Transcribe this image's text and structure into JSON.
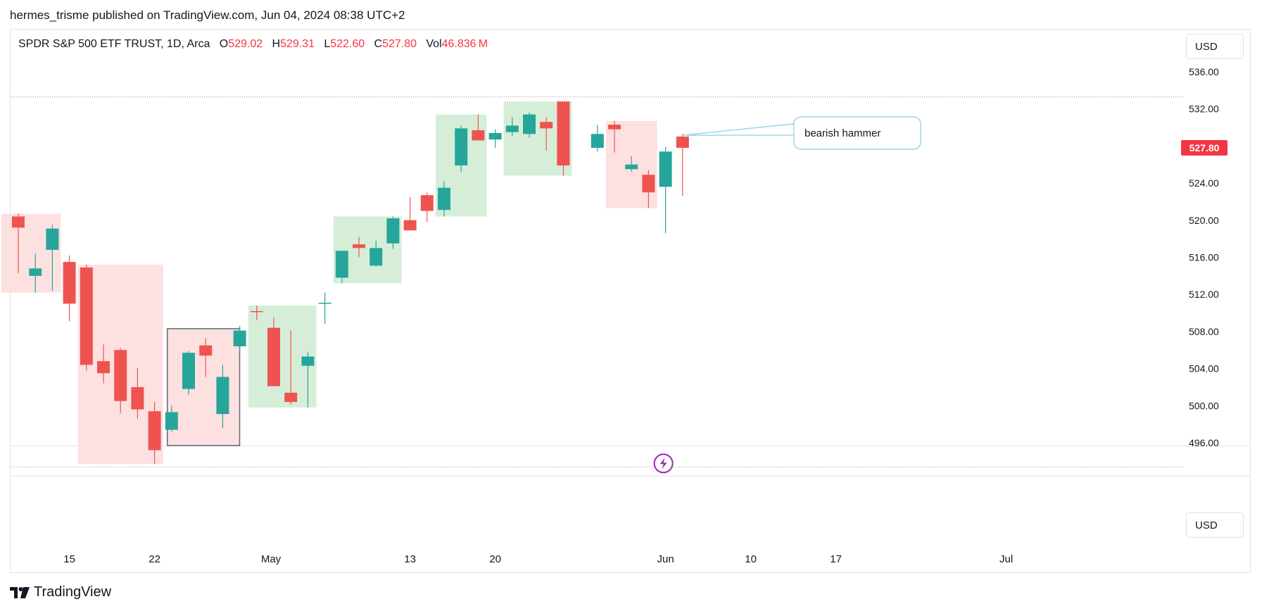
{
  "header": {
    "text": "hermes_trisme published on TradingView.com, Jun 04, 2024 08:38 UTC+2"
  },
  "symbol": {
    "name": "SPDR S&P 500 ETF TRUST, 1D, Arca",
    "o_label": "O",
    "o_value": "529.02",
    "h_label": "H",
    "h_value": "529.31",
    "l_label": "L",
    "l_value": "522.60",
    "c_label": "C",
    "c_value": "527.80",
    "vol_label": "Vol",
    "vol_value": "46.836",
    "vol_unit": "M"
  },
  "currency_top": "USD",
  "currency_bottom": "USD",
  "footer": {
    "brand": "TradingView"
  },
  "colors": {
    "up": "#26a69a",
    "down": "#ef5350",
    "up_zone": "#d6eed8",
    "down_zone": "#fde0e0",
    "price_label": "#f23645"
  },
  "chart_data": {
    "type": "candlestick",
    "title": "",
    "ylim": [
      493.5,
      537.5
    ],
    "y_ticks": [
      "536.00",
      "532.00",
      "528.00",
      "524.00",
      "520.00",
      "516.00",
      "512.00",
      "508.00",
      "504.00",
      "500.00",
      "496.00"
    ],
    "x_ticks": [
      "15",
      "22",
      "May",
      "13",
      "20",
      "Jun",
      "10",
      "17",
      "Jul"
    ],
    "last_price_label": "527.80",
    "candles": [
      {
        "date": "2024-04-10",
        "o": 520.4,
        "h": 520.7,
        "l": 514.3,
        "c": 519.2
      },
      {
        "date": "2024-04-11",
        "o": 514.0,
        "h": 516.4,
        "l": 512.2,
        "c": 514.8
      },
      {
        "date": "2024-04-12",
        "o": 516.8,
        "h": 519.5,
        "l": 512.4,
        "c": 519.1
      },
      {
        "date": "2024-04-15",
        "o": 515.5,
        "h": 516.2,
        "l": 509.1,
        "c": 511.0
      },
      {
        "date": "2024-04-16",
        "o": 514.9,
        "h": 515.2,
        "l": 503.8,
        "c": 504.4
      },
      {
        "date": "2024-04-17",
        "o": 504.8,
        "h": 506.6,
        "l": 502.4,
        "c": 503.5
      },
      {
        "date": "2024-04-18",
        "o": 506.0,
        "h": 506.2,
        "l": 499.2,
        "c": 500.5
      },
      {
        "date": "2024-04-19",
        "o": 502.0,
        "h": 504.1,
        "l": 498.6,
        "c": 499.6
      },
      {
        "date": "2024-04-22",
        "o": 499.4,
        "h": 500.4,
        "l": 493.7,
        "c": 495.2
      },
      {
        "date": "2024-04-23",
        "o": 497.4,
        "h": 500.0,
        "l": 497.2,
        "c": 499.3
      },
      {
        "date": "2024-04-24",
        "o": 501.8,
        "h": 505.9,
        "l": 501.2,
        "c": 505.7
      },
      {
        "date": "2024-04-25",
        "o": 506.5,
        "h": 507.3,
        "l": 503.1,
        "c": 505.4
      },
      {
        "date": "2024-04-26",
        "o": 499.1,
        "h": 504.4,
        "l": 497.6,
        "c": 503.1
      },
      {
        "date": "2024-04-29",
        "o": 506.4,
        "h": 508.6,
        "l": 505.8,
        "c": 508.1
      },
      {
        "date": "2024-04-30",
        "o": 510.2,
        "h": 510.8,
        "l": 509.2,
        "c": 510.1
      },
      {
        "date": "2024-05-01",
        "o": 508.4,
        "h": 509.5,
        "l": 502.2,
        "c": 502.1
      },
      {
        "date": "2024-05-02",
        "o": 501.4,
        "h": 508.1,
        "l": 500.1,
        "c": 500.4
      },
      {
        "date": "2024-05-03",
        "o": 504.3,
        "h": 505.8,
        "l": 499.8,
        "c": 505.3
      },
      {
        "date": "2024-05-06",
        "o": 511.0,
        "h": 512.2,
        "l": 508.8,
        "c": 511.1
      },
      {
        "date": "2024-05-07",
        "o": 513.8,
        "h": 516.6,
        "l": 513.2,
        "c": 516.7
      },
      {
        "date": "2024-05-08",
        "o": 517.4,
        "h": 518.2,
        "l": 516.0,
        "c": 517.0
      },
      {
        "date": "2024-05-09",
        "o": 515.1,
        "h": 517.8,
        "l": 515.0,
        "c": 517.0
      },
      {
        "date": "2024-05-10",
        "o": 517.5,
        "h": 520.4,
        "l": 516.9,
        "c": 520.2
      },
      {
        "date": "2024-05-13",
        "o": 520.0,
        "h": 522.5,
        "l": 519.2,
        "c": 518.9
      },
      {
        "date": "2024-05-14",
        "o": 522.7,
        "h": 523.0,
        "l": 519.8,
        "c": 521.0
      },
      {
        "date": "2024-05-15",
        "o": 521.1,
        "h": 524.2,
        "l": 520.4,
        "c": 523.5
      },
      {
        "date": "2024-05-16",
        "o": 525.9,
        "h": 530.2,
        "l": 525.2,
        "c": 529.9
      },
      {
        "date": "2024-05-17",
        "o": 529.7,
        "h": 531.4,
        "l": 528.7,
        "c": 528.6
      },
      {
        "date": "2024-05-20",
        "o": 528.7,
        "h": 529.8,
        "l": 527.8,
        "c": 529.4
      },
      {
        "date": "2024-05-21",
        "o": 529.5,
        "h": 531.1,
        "l": 529.1,
        "c": 530.2
      },
      {
        "date": "2024-05-22",
        "o": 529.3,
        "h": 531.6,
        "l": 528.9,
        "c": 531.4
      },
      {
        "date": "2024-05-23",
        "o": 530.6,
        "h": 531.1,
        "l": 527.5,
        "c": 529.9
      },
      {
        "date": "2024-05-24",
        "o": 532.8,
        "h": 532.8,
        "l": 524.8,
        "c": 525.9
      },
      {
        "date": "2024-05-28",
        "o": 527.8,
        "h": 530.3,
        "l": 527.4,
        "c": 529.3
      },
      {
        "date": "2024-05-29",
        "o": 530.3,
        "h": 530.7,
        "l": 527.3,
        "c": 529.8
      },
      {
        "date": "2024-05-30",
        "o": 525.5,
        "h": 526.9,
        "l": 525.2,
        "c": 526.0
      },
      {
        "date": "2024-05-31",
        "o": 524.9,
        "h": 525.4,
        "l": 521.3,
        "c": 523.0
      },
      {
        "date": "2024-06-03",
        "o": 523.6,
        "h": 527.9,
        "l": 518.6,
        "c": 527.4
      },
      {
        "date": "2024-06-04",
        "o": 529.02,
        "h": 529.31,
        "l": 522.6,
        "c": 527.8
      }
    ],
    "annotation": {
      "text": "bearish hammer"
    }
  }
}
